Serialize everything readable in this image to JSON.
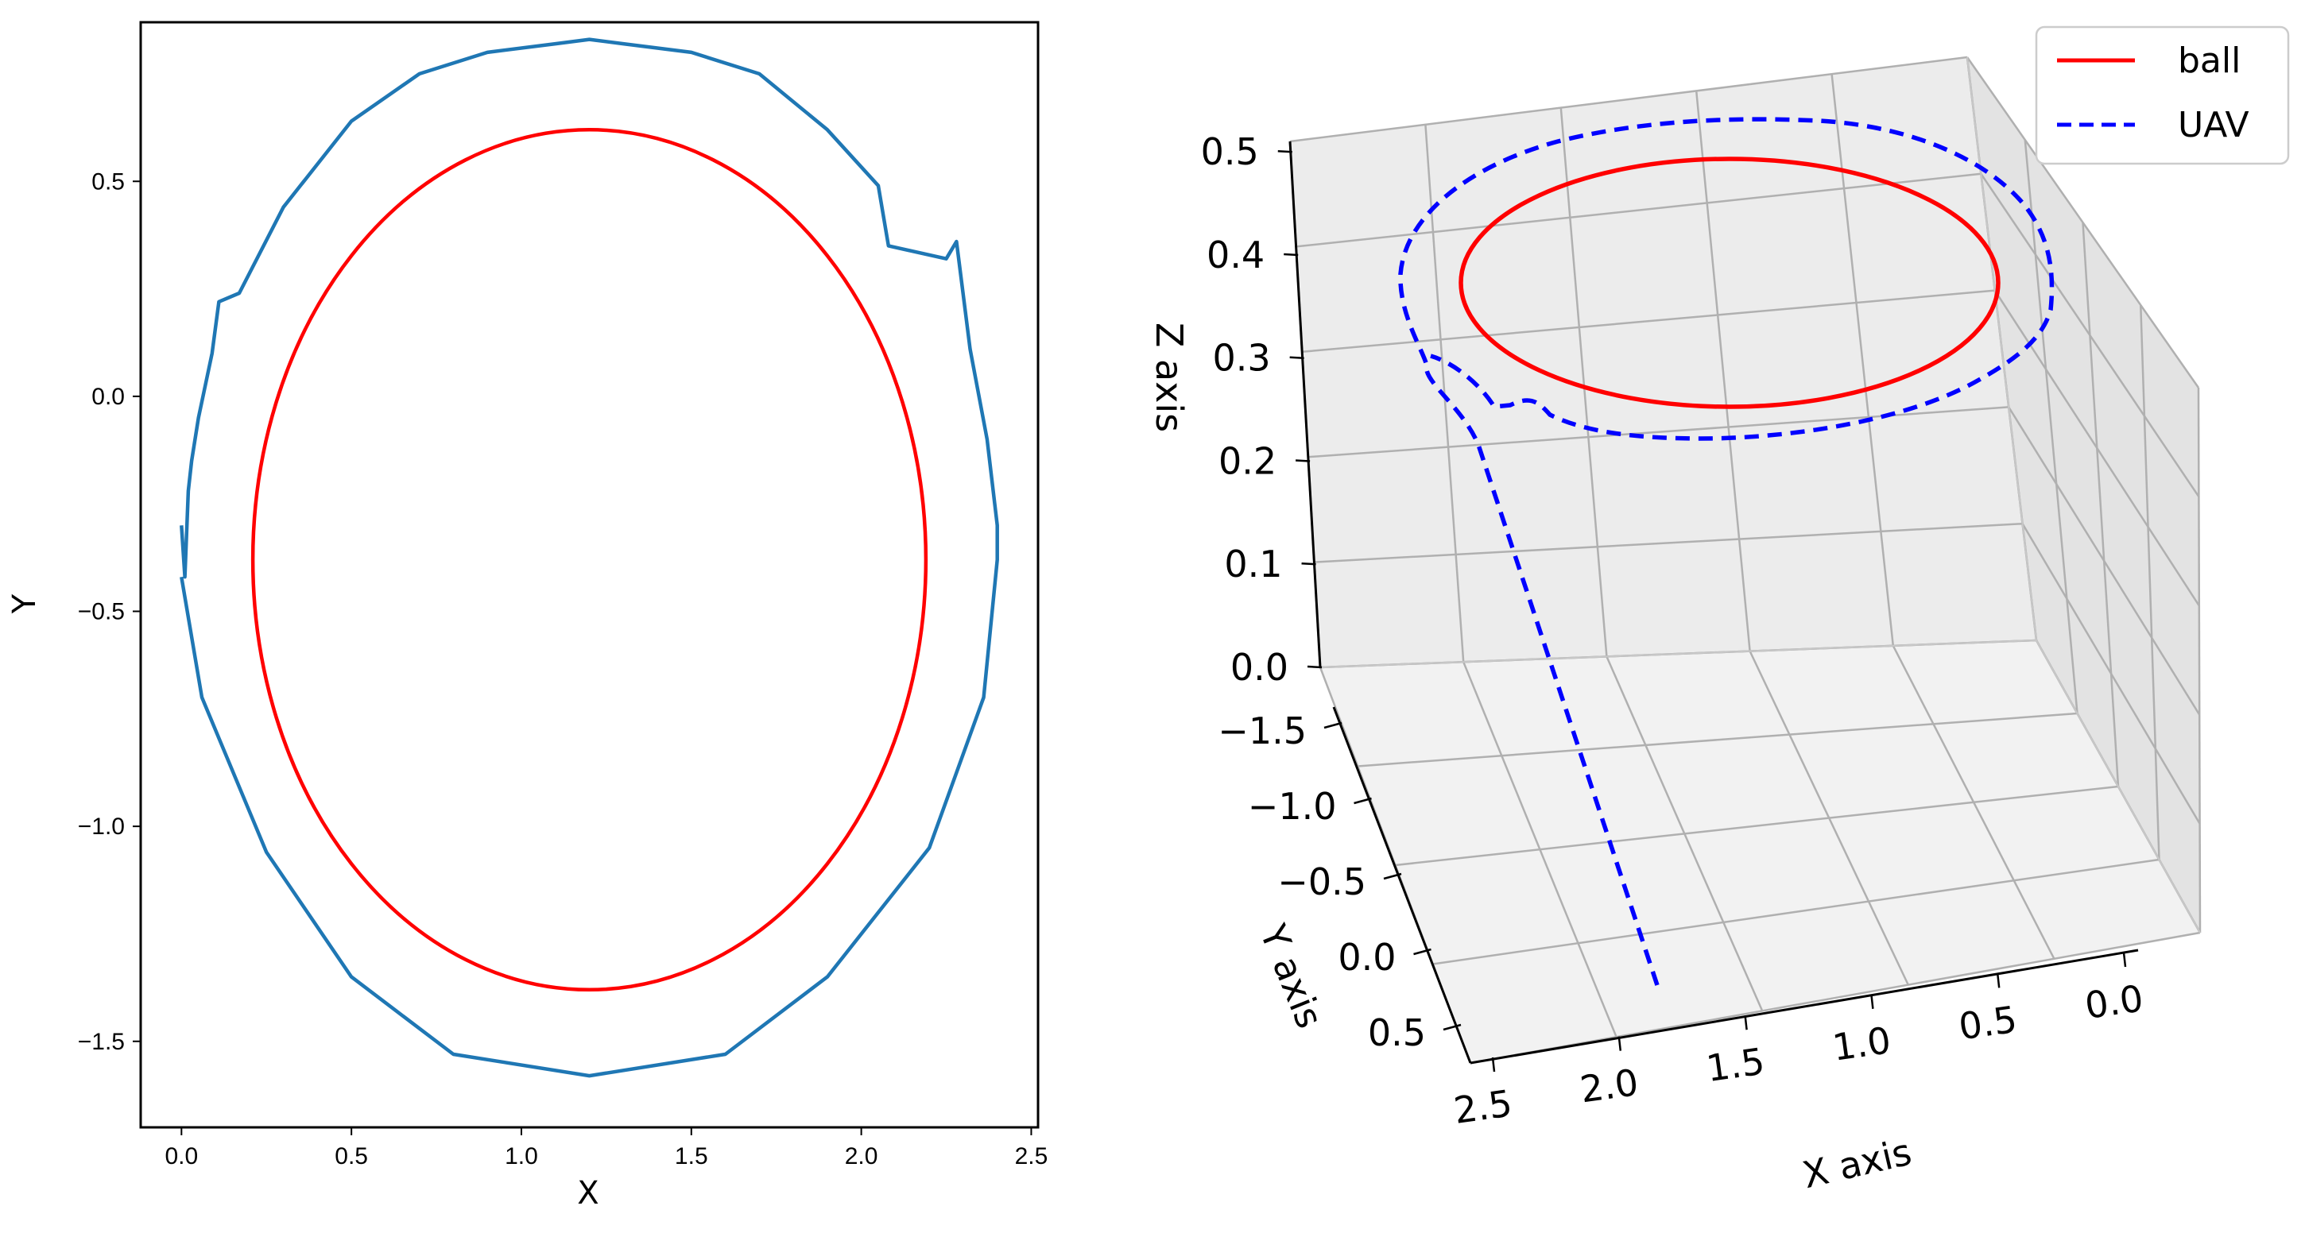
{
  "chart_data": [
    {
      "type": "line",
      "xlabel": "X",
      "ylabel": "Y",
      "xlim": [
        -0.12,
        2.52
      ],
      "ylim": [
        -1.7,
        0.87
      ],
      "xticks": [
        "0.0",
        "0.5",
        "1.0",
        "1.5",
        "2.0",
        "2.5"
      ],
      "yticks": [
        "0.5",
        "0.0",
        "−0.5",
        "−1.0",
        "−1.5"
      ],
      "series": [
        {
          "color": "#ff0000",
          "shape": "ellipse",
          "center": [
            1.2,
            -0.38
          ],
          "radius_x": 0.99,
          "radius_y": 1.0
        },
        {
          "color": "#1f77b4",
          "x": [
            0.0,
            0.01,
            0.02,
            0.03,
            0.05,
            0.09,
            0.11,
            0.17,
            0.3,
            0.5,
            0.7,
            0.9,
            1.1,
            1.2,
            1.3,
            1.5,
            1.7,
            1.9,
            2.05,
            2.08,
            2.25,
            2.28,
            2.32,
            2.37,
            2.4,
            2.4,
            2.36,
            2.2,
            1.9,
            1.6,
            1.2,
            0.8,
            0.5,
            0.25,
            0.06,
            0.0
          ],
          "y": [
            -0.3,
            -0.42,
            -0.22,
            -0.15,
            -0.05,
            0.1,
            0.22,
            0.24,
            0.44,
            0.64,
            0.75,
            0.8,
            0.82,
            0.83,
            0.82,
            0.8,
            0.75,
            0.62,
            0.49,
            0.35,
            0.32,
            0.36,
            0.11,
            -0.1,
            -0.3,
            -0.38,
            -0.7,
            -1.05,
            -1.35,
            -1.53,
            -1.58,
            -1.53,
            -1.35,
            -1.06,
            -0.7,
            -0.42
          ]
        }
      ]
    },
    {
      "type": "line3d",
      "xlabel": "X axis",
      "ylabel": "Y axis",
      "zlabel": "Z axis",
      "xticks": [
        "2.5",
        "2.0",
        "1.5",
        "1.0",
        "0.5",
        "0.0"
      ],
      "yticks": [
        "−1.5",
        "−1.0",
        "−0.5",
        "0.0",
        "0.5"
      ],
      "zticks": [
        "0.5",
        "0.4",
        "0.3",
        "0.2",
        "0.1",
        "0.0"
      ],
      "legend": "top-right",
      "series": [
        {
          "name": "ball",
          "color": "#ff0000",
          "linestyle": "solid",
          "shape": "circle",
          "center": [
            1.2,
            -0.38,
            0.4
          ],
          "radius": 1.0
        },
        {
          "name": "UAV",
          "color": "#0000ff",
          "linestyle": "dashed",
          "shape": "circle-with-takeoff",
          "center": [
            1.2,
            -0.38,
            0.4
          ],
          "radius": 1.2,
          "start": [
            2.4,
            -0.4,
            0.0
          ]
        }
      ]
    }
  ]
}
